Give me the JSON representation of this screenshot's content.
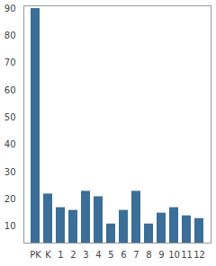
{
  "chart_data": {
    "type": "bar",
    "categories": [
      "PK",
      "K",
      "1",
      "2",
      "3",
      "4",
      "5",
      "6",
      "7",
      "8",
      "9",
      "10",
      "11",
      "12"
    ],
    "values": [
      90,
      22,
      17,
      16,
      23,
      21,
      11,
      16,
      23,
      11,
      15,
      17,
      14,
      13
    ],
    "color": "#3b6e98",
    "ylim": [
      4,
      91
    ],
    "yticks": [
      10,
      20,
      30,
      40,
      50,
      60,
      70,
      80,
      90
    ],
    "grid": false
  }
}
